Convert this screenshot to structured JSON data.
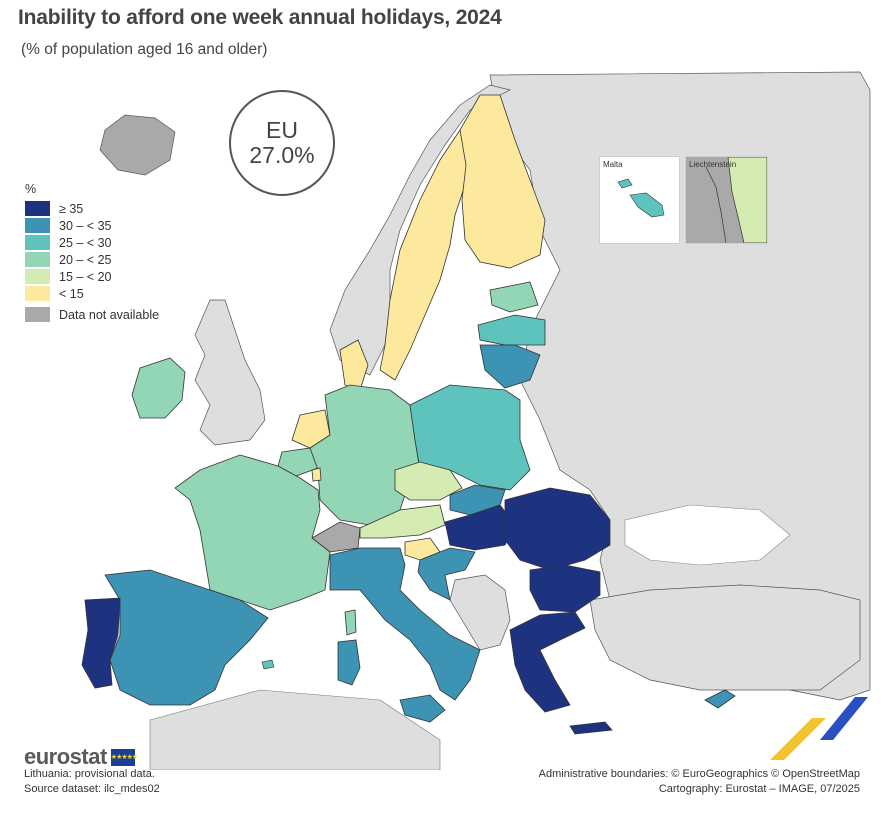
{
  "header": {
    "title": "Inability to afford one week annual holidays, 2024",
    "subtitle": "(% of population aged 16 and older)"
  },
  "eu_badge": {
    "label": "EU",
    "value": "27.0%"
  },
  "legend": {
    "unit": "%",
    "classes": [
      {
        "label": "≥ 35",
        "color": "#1d3380"
      },
      {
        "label": "30 – < 35",
        "color": "#3d93b4"
      },
      {
        "label": "25 – < 30",
        "color": "#5ec2bd"
      },
      {
        "label": "20 – < 25",
        "color": "#93d6b5"
      },
      {
        "label": "15 – < 20",
        "color": "#d4ecb1"
      },
      {
        "label": "< 15",
        "color": "#fde99e"
      }
    ],
    "no_data": {
      "label": "Data not available",
      "color": "#a9a9a9"
    }
  },
  "colors": {
    "non_eu_land": "#dedede",
    "sea": "#ffffff",
    "border": "#333333"
  },
  "insets": {
    "malta": {
      "label": "Malta"
    },
    "liechtenstein": {
      "label": "Liechtenstein"
    }
  },
  "branding": {
    "name": "eurostat",
    "flag_stars": "★★★★★"
  },
  "footer": {
    "note_1": "Lithuania: provisional data.",
    "note_2": "Source dataset: ilc_mdes02",
    "credit_1": "Administrative boundaries: © EuroGeographics © OpenStreetMap",
    "credit_2": "Cartography: Eurostat – IMAGE, 07/2025"
  }
}
